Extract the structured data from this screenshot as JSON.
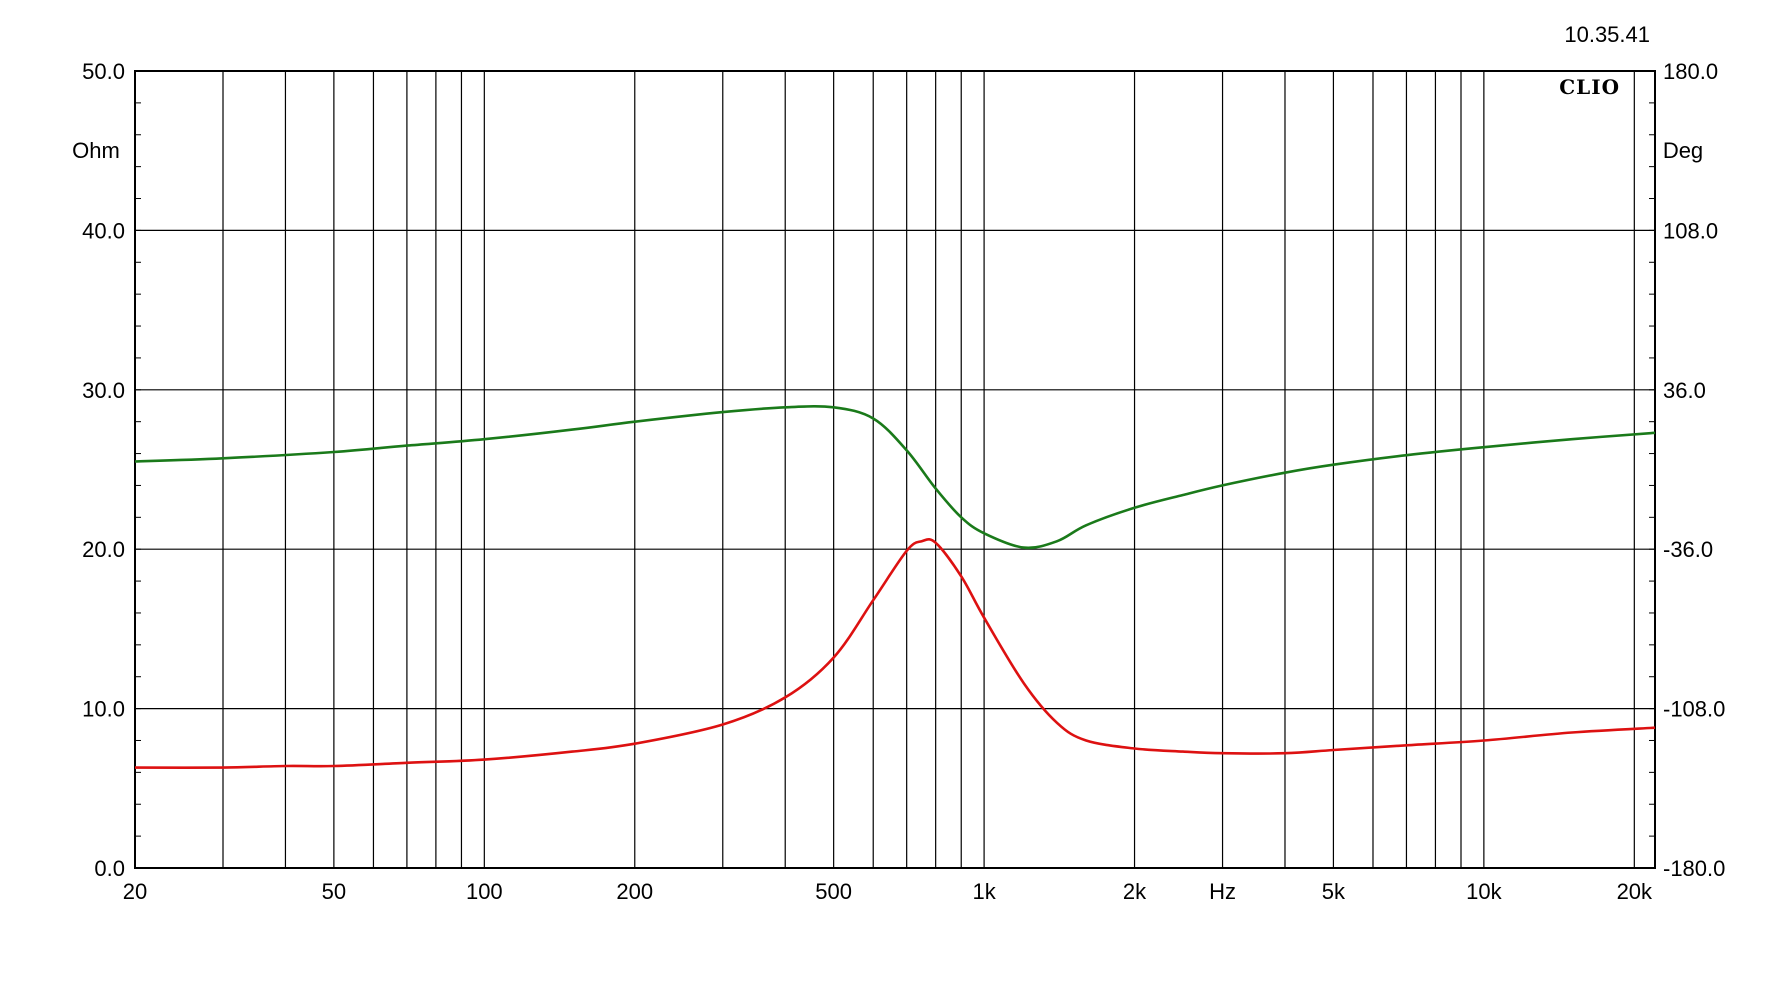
{
  "header": {
    "timestamp": "10.35.41",
    "brand": "CLIO"
  },
  "chart_data": {
    "type": "line",
    "x_scale": "log",
    "xlim": [
      20,
      22000
    ],
    "x_ticks": [
      {
        "value": 20,
        "label": "20"
      },
      {
        "value": 50,
        "label": "50"
      },
      {
        "value": 100,
        "label": "100"
      },
      {
        "value": 200,
        "label": "200"
      },
      {
        "value": 500,
        "label": "500"
      },
      {
        "value": 1000,
        "label": "1k"
      },
      {
        "value": 2000,
        "label": "2k"
      },
      {
        "value": 5000,
        "label": "5k"
      },
      {
        "value": 10000,
        "label": "10k"
      },
      {
        "value": 20000,
        "label": "20k"
      }
    ],
    "x_unit": {
      "value": 3000,
      "label": "Hz"
    },
    "x_gridlines": [
      20,
      30,
      40,
      50,
      60,
      70,
      80,
      90,
      100,
      200,
      300,
      400,
      500,
      600,
      700,
      800,
      900,
      1000,
      2000,
      3000,
      4000,
      5000,
      6000,
      7000,
      8000,
      9000,
      10000,
      20000,
      22000
    ],
    "y_left": {
      "unit": "Ohm",
      "ylim": [
        0,
        50
      ],
      "ticks": [
        "0.0",
        "10.0",
        "20.0",
        "30.0",
        "40.0",
        "50.0"
      ],
      "tick_values": [
        0,
        10,
        20,
        30,
        40,
        50
      ]
    },
    "y_right": {
      "unit": "Deg",
      "ylim": [
        -180,
        180
      ],
      "ticks": [
        "-180.0",
        "-108.0",
        "-36.0",
        "36.0",
        "108.0",
        "180.0"
      ],
      "tick_values": [
        -180,
        -108,
        -36,
        36,
        108,
        180
      ]
    },
    "grid": true,
    "series": [
      {
        "axis": "left",
        "color": "#dd1111",
        "points": [
          [
            20,
            6.3
          ],
          [
            30,
            6.3
          ],
          [
            40,
            6.4
          ],
          [
            50,
            6.4
          ],
          [
            70,
            6.6
          ],
          [
            100,
            6.8
          ],
          [
            150,
            7.3
          ],
          [
            200,
            7.8
          ],
          [
            300,
            9.0
          ],
          [
            400,
            10.7
          ],
          [
            500,
            13.2
          ],
          [
            600,
            16.8
          ],
          [
            700,
            19.9
          ],
          [
            750,
            20.5
          ],
          [
            800,
            20.4
          ],
          [
            900,
            18.3
          ],
          [
            1000,
            15.7
          ],
          [
            1200,
            11.6
          ],
          [
            1400,
            9.1
          ],
          [
            1600,
            8.0
          ],
          [
            2000,
            7.5
          ],
          [
            2500,
            7.3
          ],
          [
            3000,
            7.2
          ],
          [
            4000,
            7.2
          ],
          [
            5000,
            7.4
          ],
          [
            7000,
            7.7
          ],
          [
            10000,
            8.0
          ],
          [
            15000,
            8.5
          ],
          [
            22000,
            8.8
          ]
        ]
      },
      {
        "axis": "left",
        "color": "#1a7a1a",
        "points": [
          [
            20,
            25.5
          ],
          [
            30,
            25.7
          ],
          [
            50,
            26.1
          ],
          [
            70,
            26.5
          ],
          [
            100,
            26.9
          ],
          [
            150,
            27.5
          ],
          [
            200,
            28.0
          ],
          [
            300,
            28.6
          ],
          [
            400,
            28.9
          ],
          [
            500,
            28.9
          ],
          [
            600,
            28.2
          ],
          [
            700,
            26.2
          ],
          [
            800,
            23.8
          ],
          [
            900,
            22.0
          ],
          [
            1000,
            21.0
          ],
          [
            1200,
            20.1
          ],
          [
            1400,
            20.5
          ],
          [
            1600,
            21.5
          ],
          [
            2000,
            22.6
          ],
          [
            2500,
            23.4
          ],
          [
            3000,
            24.0
          ],
          [
            4000,
            24.8
          ],
          [
            5000,
            25.3
          ],
          [
            7000,
            25.9
          ],
          [
            10000,
            26.4
          ],
          [
            15000,
            26.9
          ],
          [
            22000,
            27.3
          ]
        ]
      }
    ]
  }
}
